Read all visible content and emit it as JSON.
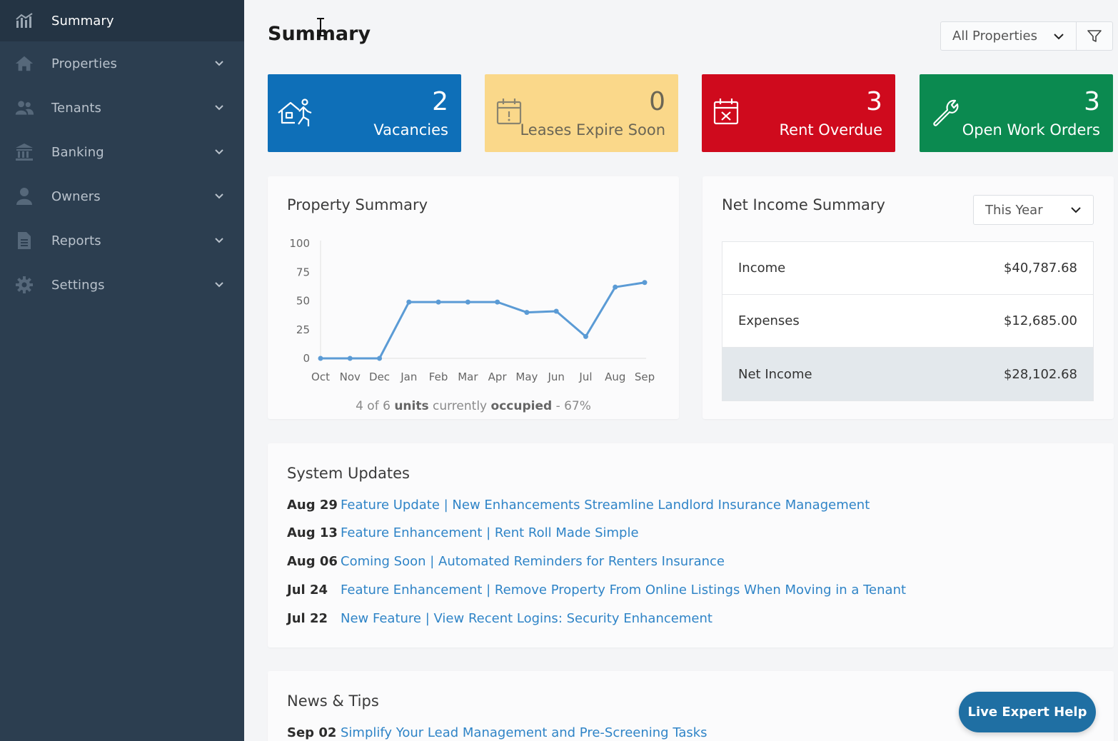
{
  "sidebar": {
    "items": [
      {
        "label": "Summary",
        "icon": "chart-icon",
        "active": true
      },
      {
        "label": "Properties",
        "icon": "house-icon"
      },
      {
        "label": "Tenants",
        "icon": "people-icon"
      },
      {
        "label": "Banking",
        "icon": "bank-icon"
      },
      {
        "label": "Owners",
        "icon": "person-icon"
      },
      {
        "label": "Reports",
        "icon": "document-icon"
      },
      {
        "label": "Settings",
        "icon": "gear-icon"
      }
    ]
  },
  "header": {
    "title": "Summary",
    "property_filter": "All Properties"
  },
  "tiles": [
    {
      "value": "2",
      "label": "Vacancies",
      "color": "#0e6fb8"
    },
    {
      "value": "0",
      "label": "Leases Expire Soon",
      "color": "#fad88a"
    },
    {
      "value": "3",
      "label": "Rent Overdue",
      "color": "#cf0a1d"
    },
    {
      "value": "3",
      "label": "Open Work Orders",
      "color": "#0b8a50"
    }
  ],
  "property_summary": {
    "title": "Property Summary",
    "occupancy": {
      "count_text": "4 of 6",
      "units_word": "units",
      "currently_word": "currently",
      "occupied_word": "occupied",
      "percent_text": "- 67%"
    }
  },
  "chart_data": {
    "type": "line",
    "title": "",
    "categories": [
      "Oct",
      "Nov",
      "Dec",
      "Jan",
      "Feb",
      "Mar",
      "Apr",
      "May",
      "Jun",
      "Jul",
      "Aug",
      "Sep"
    ],
    "values": [
      0,
      0,
      0,
      49,
      49,
      49,
      49,
      40,
      41,
      19,
      62,
      66
    ],
    "yticks": [
      0,
      25,
      50,
      75,
      100
    ],
    "ylim": [
      0,
      100
    ],
    "xlabel": "",
    "ylabel": "",
    "grid": false,
    "color": "#5b9bd5"
  },
  "net_income": {
    "title": "Net Income Summary",
    "period": "This Year",
    "rows": [
      {
        "label": "Income",
        "amount": "$40,787.68"
      },
      {
        "label": "Expenses",
        "amount": "$12,685.00"
      },
      {
        "label": "Net Income",
        "amount": "$28,102.68"
      }
    ]
  },
  "system_updates": {
    "title": "System Updates",
    "items": [
      {
        "date": "Aug 29",
        "text": "Feature Update | New Enhancements Streamline Landlord Insurance Management"
      },
      {
        "date": "Aug 13",
        "text": "Feature Enhancement | Rent Roll Made Simple"
      },
      {
        "date": "Aug 06",
        "text": "Coming Soon | Automated Reminders for Renters Insurance"
      },
      {
        "date": "Jul 24",
        "text": "Feature Enhancement | Remove Property From Online Listings When Moving in a Tenant"
      },
      {
        "date": "Jul 22",
        "text": "New Feature | View Recent Logins: Security Enhancement"
      }
    ]
  },
  "news": {
    "title": "News & Tips",
    "items": [
      {
        "date": "Sep 02",
        "text": "Simplify Your Lead Management and Pre-Screening Tasks"
      }
    ]
  },
  "help_button": "Live Expert Help"
}
